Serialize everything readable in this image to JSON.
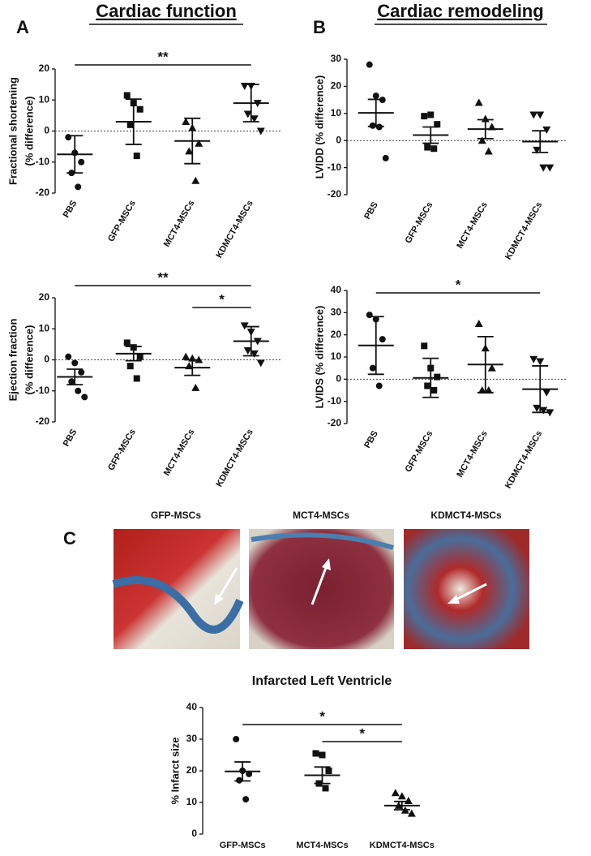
{
  "panel_labels": [
    "A",
    "B",
    "C"
  ],
  "headings": [
    "Cardiac function",
    "Cardiac remodeling"
  ],
  "image_titles": [
    "GFP-MSCs",
    "MCT4-MSCs",
    "KDMCT4-MSCs"
  ],
  "chart_data": [
    {
      "type": "dot",
      "ylabel": [
        "Fractional shortening",
        "(% difference)"
      ],
      "categories": [
        "PBS",
        "GFP-MSCs",
        "MCT4-MSCs",
        "KDMCT4-MSCs"
      ],
      "markers": [
        "circle",
        "square",
        "triangle",
        "triangle-down"
      ],
      "color": "#111111",
      "points": [
        [
          -2,
          -7,
          -10,
          -13.5,
          -18
        ],
        [
          11.5,
          9,
          7,
          2,
          -8
        ],
        [
          3,
          1,
          -4,
          -6.5,
          -16
        ],
        [
          14.5,
          14.5,
          9,
          5.5,
          4,
          0
        ]
      ],
      "means": [
        -7.5,
        3,
        -3.2,
        9
      ],
      "errors": [
        6,
        7.3,
        7.3,
        6
      ],
      "ylim": [
        -20,
        20
      ],
      "yticks": [
        -20,
        -10,
        0,
        10,
        20
      ],
      "zero_line": true,
      "significance": [
        {
          "between": [
            "PBS",
            "KDMCT4-MSCs"
          ],
          "label": "**"
        }
      ]
    },
    {
      "type": "dot",
      "ylabel": "LVIDD (% difference)",
      "categories": [
        "PBS",
        "GFP-MSCs",
        "MCT4-MSCs",
        "KDMCT4-MSCs"
      ],
      "markers": [
        "circle",
        "square",
        "triangle",
        "triangle-down"
      ],
      "color": "#111111",
      "points": [
        [
          28,
          16.5,
          15,
          5.5,
          5,
          -6.5
        ],
        [
          9,
          9.5,
          6,
          -2.5,
          -3
        ],
        [
          14,
          8,
          5,
          0,
          -4
        ],
        [
          9.5,
          9.5,
          4,
          -3.5,
          -10,
          -10
        ]
      ],
      "means": [
        10.2,
        2,
        4.2,
        -0.4
      ],
      "errors": [
        5,
        3,
        3.5,
        4
      ],
      "ylim": [
        -20,
        30
      ],
      "yticks": [
        -20,
        -10,
        0,
        10,
        20,
        30
      ],
      "zero_line": true,
      "significance": []
    },
    {
      "type": "dot",
      "ylabel": [
        "Ejection fraction",
        "(% difference)"
      ],
      "categories": [
        "PBS",
        "GFP-MSCs",
        "MCT4-MSCs",
        "KDMCT4-MSCs"
      ],
      "markers": [
        "circle",
        "square",
        "triangle",
        "triangle-down"
      ],
      "color": "#111111",
      "points": [
        [
          1,
          -1,
          -4,
          -7,
          -10,
          -12
        ],
        [
          5.5,
          4,
          1,
          -2,
          -6
        ],
        [
          1,
          0.5,
          0,
          -2,
          -9
        ],
        [
          11,
          9,
          6,
          3,
          2,
          -1
        ]
      ],
      "means": [
        -5.5,
        2,
        -2.5,
        6
      ],
      "errors": [
        2.5,
        2.3,
        2.5,
        4.7
      ],
      "ylim": [
        -20,
        20
      ],
      "yticks": [
        -20,
        -10,
        0,
        10,
        20
      ],
      "zero_line": true,
      "significance": [
        {
          "between": [
            "PBS",
            "KDMCT4-MSCs"
          ],
          "label": "**"
        },
        {
          "between": [
            "MCT4-MSCs",
            "KDMCT4-MSCs"
          ],
          "label": "*"
        }
      ]
    },
    {
      "type": "dot",
      "ylabel": "LVIDS (% difference)",
      "categories": [
        "PBS",
        "GFP-MSCs",
        "MCT4-MSCs",
        "KDMCT4-MSCs"
      ],
      "markers": [
        "circle",
        "square",
        "triangle",
        "triangle-down"
      ],
      "color": "#111111",
      "points": [
        [
          29,
          27,
          18,
          5,
          -3
        ],
        [
          15,
          5,
          1,
          -3,
          -5
        ],
        [
          25,
          14,
          5,
          -5,
          -5
        ],
        [
          9,
          8,
          -6,
          -13,
          -14,
          -15
        ]
      ],
      "means": [
        15.2,
        0.6,
        6.6,
        -4.5
      ],
      "errors": [
        13,
        8.8,
        12.6,
        10.5
      ],
      "ylim": [
        -20,
        40
      ],
      "yticks": [
        -20,
        -10,
        0,
        10,
        20,
        30,
        40
      ],
      "zero_line": true,
      "significance": [
        {
          "between": [
            "PBS",
            "KDMCT4-MSCs"
          ],
          "label": "*"
        }
      ]
    },
    {
      "type": "dot",
      "title": "Infarcted Left Ventricle",
      "ylabel": "% Infarct size",
      "categories": [
        "GFP-MSCs",
        "MCT4-MSCs",
        "KDMCT4-MSCs"
      ],
      "markers": [
        "circle",
        "square",
        "triangle"
      ],
      "color": "#111111",
      "points": [
        [
          30,
          20,
          19,
          17,
          11
        ],
        [
          25.5,
          25,
          20,
          16,
          14.5
        ],
        [
          13,
          12,
          10.5,
          9,
          7.5,
          6.5
        ]
      ],
      "means": [
        19.8,
        18.6,
        9
      ],
      "errors": [
        3,
        2.6,
        1.3
      ],
      "ylim": [
        0,
        40
      ],
      "yticks": [
        0,
        10,
        20,
        30,
        40
      ],
      "zero_line": false,
      "significance": [
        {
          "between": [
            "GFP-MSCs",
            "KDMCT4-MSCs"
          ],
          "label": "*"
        },
        {
          "between": [
            "MCT4-MSCs",
            "KDMCT4-MSCs"
          ],
          "label": "*"
        }
      ]
    }
  ]
}
